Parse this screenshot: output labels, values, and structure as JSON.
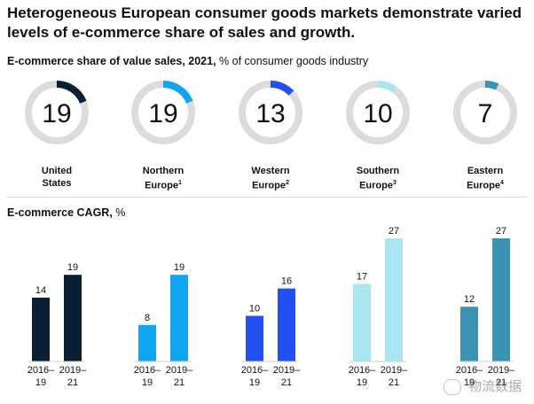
{
  "title": "Heterogeneous European consumer goods markets demonstrate varied levels of e-commerce share of sales and growth.",
  "share_heading": {
    "bold": "E-commerce share of value sales, 2021,",
    "rest": " % of consumer goods industry"
  },
  "cagr_heading": {
    "bold": "E-commerce CAGR,",
    "rest": " %"
  },
  "regions": [
    {
      "name": "United States",
      "line1": "United",
      "line2": "States",
      "sup": "",
      "color": "#0b1f33"
    },
    {
      "name": "Northern Europe",
      "line1": "Northern",
      "line2": "Europe",
      "sup": "1",
      "color": "#12a5ef"
    },
    {
      "name": "Western Europe",
      "line1": "Western",
      "line2": "Europe",
      "sup": "2",
      "color": "#2350f0"
    },
    {
      "name": "Southern Europe",
      "line1": "Southern",
      "line2": "Europe",
      "sup": "3",
      "color": "#a9e6f2"
    },
    {
      "name": "Eastern Europe",
      "line1": "Eastern",
      "line2": "Europe",
      "sup": "4",
      "color": "#3b93b3"
    }
  ],
  "watermark": "物流数据",
  "chart_data": [
    {
      "type": "pie",
      "title": "E-commerce share of value sales, 2021, % of consumer goods industry",
      "categories": [
        "United States",
        "Northern Europe",
        "Western Europe",
        "Southern Europe",
        "Eastern Europe"
      ],
      "values": [
        19,
        19,
        13,
        10,
        7
      ],
      "max": 100
    },
    {
      "type": "bar",
      "title": "E-commerce CAGR, %",
      "categories": [
        "United States",
        "Northern Europe",
        "Western Europe",
        "Southern Europe",
        "Eastern Europe"
      ],
      "period_labels": [
        [
          "2016–",
          "19"
        ],
        [
          "2019–",
          "21"
        ]
      ],
      "series": [
        {
          "name": "2016–19",
          "values": [
            14,
            8,
            10,
            17,
            12
          ]
        },
        {
          "name": "2019–21",
          "values": [
            19,
            19,
            16,
            27,
            27
          ]
        }
      ],
      "ylim": [
        0,
        27
      ]
    }
  ]
}
